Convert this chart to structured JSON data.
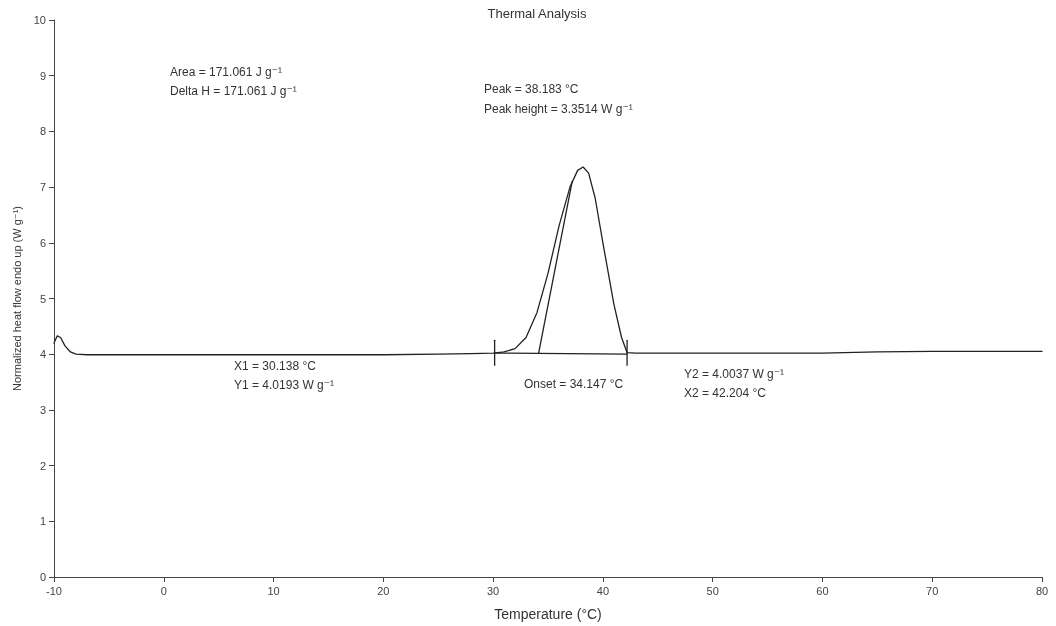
{
  "chart_data": {
    "type": "line",
    "title": "Thermal Analysis",
    "xlabel": "Temperature (°C)",
    "ylabel": "Normalized heat flow endo up (W g⁻¹)",
    "xlim": [
      -10,
      80
    ],
    "xticks": [
      -10,
      0,
      10,
      20,
      30,
      40,
      50,
      60,
      70,
      80
    ],
    "ylim": [
      0,
      10
    ],
    "yticks": [
      0,
      1,
      2,
      3,
      4,
      5,
      6,
      7,
      8,
      9,
      10
    ],
    "grid": false,
    "marker": "none",
    "line_style": "solid",
    "series": [
      {
        "color": "#222222",
        "x": [
          -10,
          -9.7,
          -9.4,
          -9,
          -8.5,
          -8,
          -7,
          -5,
          0,
          10,
          20,
          25,
          28,
          30,
          31,
          32,
          33,
          34,
          35,
          36,
          37,
          37.7,
          38.2,
          38.7,
          39.3,
          40,
          41,
          41.7,
          42.2,
          43,
          50,
          60,
          65,
          70,
          80
        ],
        "values": [
          4.2,
          4.33,
          4.3,
          4.15,
          4.04,
          4.0,
          3.99,
          3.99,
          3.99,
          3.99,
          3.99,
          4.0,
          4.01,
          4.02,
          4.04,
          4.1,
          4.3,
          4.75,
          5.45,
          6.3,
          7.0,
          7.3,
          7.36,
          7.25,
          6.8,
          6.0,
          4.9,
          4.3,
          4.03,
          4.02,
          4.02,
          4.02,
          4.04,
          4.05,
          4.05
        ]
      },
      {
        "color": "#222222",
        "x": [
          30.138,
          42.204
        ],
        "values": [
          4.02,
          4.0
        ]
      },
      {
        "color": "#222222",
        "x": [
          34.147,
          37.2
        ],
        "values": [
          4.02,
          7.1
        ]
      },
      {
        "color": "#222222",
        "x": [
          30.138,
          30.138
        ],
        "values": [
          3.8,
          4.25
        ]
      },
      {
        "color": "#222222",
        "x": [
          42.204,
          42.204
        ],
        "values": [
          3.8,
          4.25
        ]
      }
    ],
    "annotations": [
      "Area = 171.061 J g⁻¹",
      "Delta H = 171.061 J g⁻¹",
      "Peak = 38.183 °C",
      "Peak height = 3.3514 W g⁻¹",
      "X1 = 30.138 °C",
      "Y1 = 4.0193 W g⁻¹",
      "Onset = 34.147 °C",
      "Y2 = 4.0037 W g⁻¹",
      "X2 = 42.204 °C"
    ]
  }
}
